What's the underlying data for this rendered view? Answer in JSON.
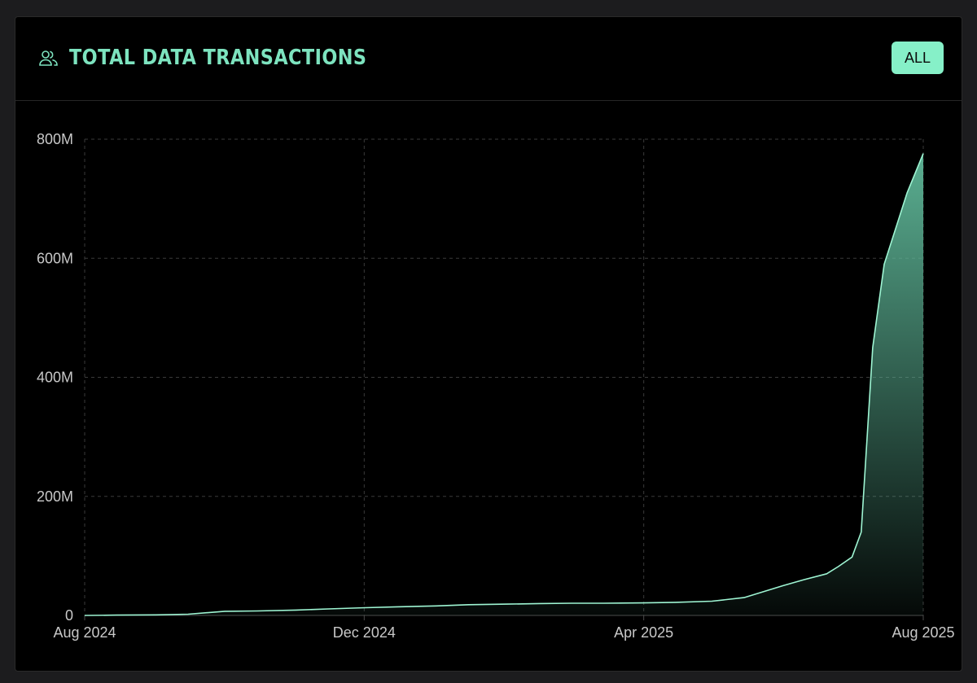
{
  "header": {
    "title": "TOTAL DATA TRANSACTIONS",
    "title_icon": "users-icon",
    "range_button": "ALL"
  },
  "colors": {
    "accent": "#7de3bf",
    "button": "#86f0c8",
    "line": "#9ef5d3",
    "fill": "#5fb899",
    "background": "#000000",
    "grid": "#3a3a3a",
    "tick_text": "#c8c8c8"
  },
  "chart_data": {
    "type": "area",
    "title": "TOTAL DATA TRANSACTIONS",
    "xlabel": "",
    "ylabel": "",
    "x_ticks": [
      "Aug 2024",
      "Dec 2024",
      "Apr 2025",
      "Aug 2025"
    ],
    "y_ticks": [
      "0",
      "200M",
      "400M",
      "600M",
      "800M"
    ],
    "ylim": [
      0,
      800000000
    ],
    "xlim": [
      "2024-08-01",
      "2025-08-01"
    ],
    "grid": true,
    "legend": "none",
    "series": [
      {
        "x": [
          "2024-08-01",
          "2024-08-15",
          "2024-09-01",
          "2024-09-15",
          "2024-10-01",
          "2024-10-15",
          "2024-11-01",
          "2024-11-15",
          "2024-12-01",
          "2024-12-15",
          "2025-01-01",
          "2025-01-15",
          "2025-02-01",
          "2025-02-15",
          "2025-03-01",
          "2025-03-15",
          "2025-04-01",
          "2025-04-15",
          "2025-05-01",
          "2025-05-15",
          "2025-06-01",
          "2025-06-10",
          "2025-06-20",
          "2025-06-25",
          "2025-07-01",
          "2025-07-05",
          "2025-07-10",
          "2025-07-15",
          "2025-07-20",
          "2025-07-25",
          "2025-08-01"
        ],
        "values": [
          0,
          500000,
          1000000,
          2000000,
          7000000,
          7500000,
          9000000,
          11000000,
          13000000,
          14500000,
          16000000,
          18000000,
          19000000,
          20000000,
          20500000,
          20500000,
          21000000,
          22000000,
          24000000,
          30000000,
          50000000,
          60000000,
          70000000,
          82000000,
          98000000,
          140000000,
          450000000,
          590000000,
          650000000,
          710000000,
          776000000
        ]
      }
    ]
  }
}
